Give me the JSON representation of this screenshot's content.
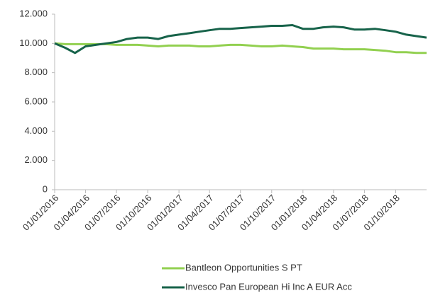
{
  "chart_data": {
    "type": "line",
    "x": [
      "01/01/2016",
      "01/02/2016",
      "01/03/2016",
      "01/04/2016",
      "01/05/2016",
      "01/06/2016",
      "01/07/2016",
      "01/08/2016",
      "01/09/2016",
      "01/10/2016",
      "01/11/2016",
      "01/12/2016",
      "01/01/2017",
      "01/02/2017",
      "01/03/2017",
      "01/04/2017",
      "01/05/2017",
      "01/06/2017",
      "01/07/2017",
      "01/08/2017",
      "01/09/2017",
      "01/10/2017",
      "01/11/2017",
      "01/12/2017",
      "01/01/2018",
      "01/02/2018",
      "01/03/2018",
      "01/04/2018",
      "01/05/2018",
      "01/06/2018",
      "01/07/2018",
      "01/08/2018",
      "01/09/2018",
      "01/10/2018",
      "01/11/2018",
      "01/12/2018",
      "31/12/2018"
    ],
    "series": [
      {
        "name": "Bantleon Opportunities S PT",
        "color": "#92d050",
        "values": [
          10000,
          9950,
          9950,
          9950,
          9950,
          9950,
          9900,
          9900,
          9900,
          9850,
          9800,
          9850,
          9850,
          9850,
          9800,
          9800,
          9850,
          9900,
          9900,
          9850,
          9800,
          9800,
          9850,
          9800,
          9750,
          9650,
          9650,
          9650,
          9600,
          9600,
          9600,
          9550,
          9500,
          9400,
          9400,
          9350,
          9350
        ]
      },
      {
        "name": "Invesco Pan European Hi Inc A EUR Acc",
        "color": "#17634a",
        "values": [
          10000,
          9700,
          9350,
          9800,
          9900,
          10000,
          10100,
          10300,
          10400,
          10400,
          10300,
          10500,
          10600,
          10700,
          10800,
          10900,
          11000,
          11000,
          11050,
          11100,
          11150,
          11200,
          11200,
          11250,
          11000,
          11000,
          11100,
          11150,
          11100,
          10950,
          10950,
          11000,
          10900,
          10800,
          10600,
          10500,
          10400
        ]
      }
    ],
    "xlim": [
      "01/01/2016",
      "31/12/2018"
    ],
    "xticks": [
      "01/01/2016",
      "01/04/2016",
      "01/07/2016",
      "01/10/2016",
      "01/01/2017",
      "01/04/2017",
      "01/07/2017",
      "01/10/2017",
      "01/01/2018",
      "01/04/2018",
      "01/07/2018",
      "01/10/2018"
    ],
    "ylim": [
      0,
      12000
    ],
    "yticks": [
      0,
      {
        "value": 2000,
        "label": "2.000"
      },
      {
        "value": 4000,
        "label": "4.000"
      },
      {
        "value": 6000,
        "label": "6.000"
      },
      {
        "value": 8000,
        "label": "8.000"
      },
      {
        "value": 10000,
        "label": "10.000"
      },
      {
        "value": 12000,
        "label": "12.000"
      }
    ],
    "grid": false
  }
}
